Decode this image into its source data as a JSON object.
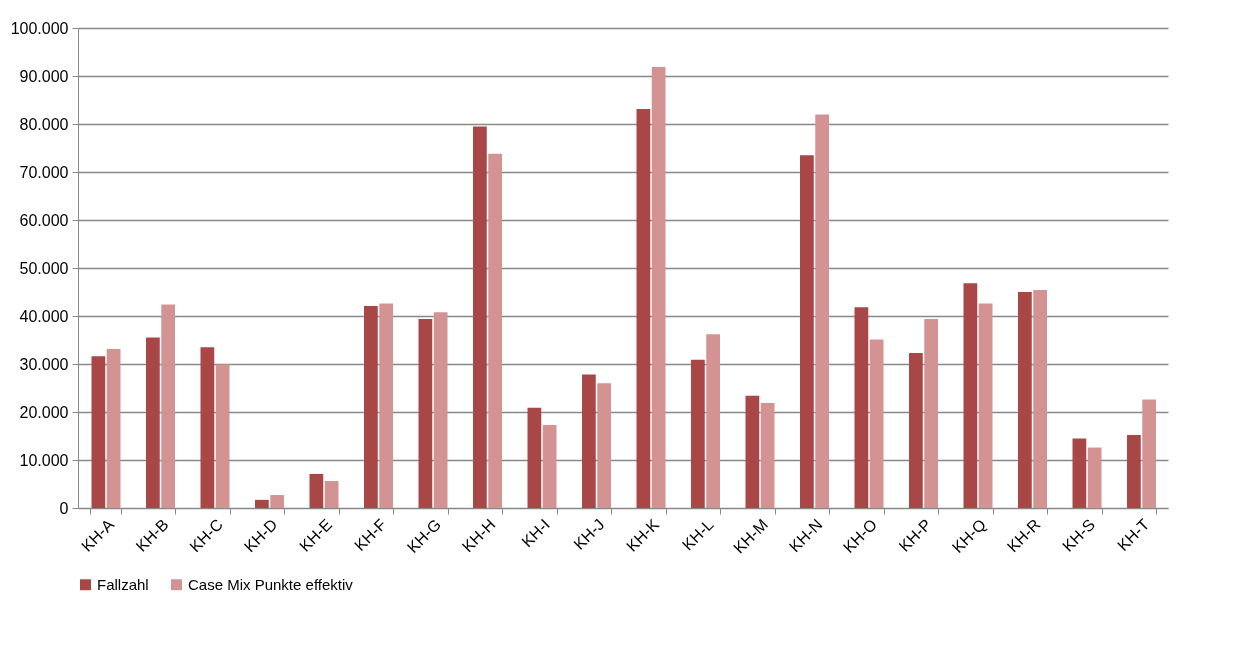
{
  "chart_data": {
    "type": "bar",
    "categories": [
      "KH-A",
      "KH-B",
      "KH-C",
      "KH-D",
      "KH-E",
      "KH-F",
      "KH-G",
      "KH-H",
      "KH-I",
      "KH-J",
      "KH-K",
      "KH-L",
      "KH-M",
      "KH-N",
      "KH-O",
      "KH-P",
      "KH-Q",
      "KH-R",
      "KH-S",
      "KH-T"
    ],
    "series": [
      {
        "name": "Fallzahl",
        "color": "#a94646",
        "values": [
          31600,
          35500,
          33500,
          1700,
          7100,
          42100,
          39400,
          79500,
          20900,
          27800,
          83100,
          30900,
          23400,
          73500,
          41800,
          32300,
          46800,
          45000,
          14500,
          15200
        ]
      },
      {
        "name": "Case Mix Punkte effektiv",
        "color": "#d39393",
        "values": [
          33100,
          42400,
          29900,
          2700,
          5600,
          42600,
          40800,
          73800,
          17300,
          26000,
          91900,
          36200,
          21900,
          82000,
          35100,
          39400,
          42600,
          45400,
          12600,
          22600
        ]
      }
    ],
    "ylim": [
      0,
      100000
    ],
    "yticks": [
      {
        "value": 0,
        "label": "0"
      },
      {
        "value": 10000,
        "label": "10.000"
      },
      {
        "value": 20000,
        "label": "20.000"
      },
      {
        "value": 30000,
        "label": "30.000"
      },
      {
        "value": 40000,
        "label": "40.000"
      },
      {
        "value": 50000,
        "label": "50.000"
      },
      {
        "value": 60000,
        "label": "60.000"
      },
      {
        "value": 70000,
        "label": "70.000"
      },
      {
        "value": 80000,
        "label": "80.000"
      },
      {
        "value": 90000,
        "label": "90.000"
      },
      {
        "value": 100000,
        "label": "100.000"
      }
    ],
    "grid": "y",
    "legend": "bottom"
  }
}
